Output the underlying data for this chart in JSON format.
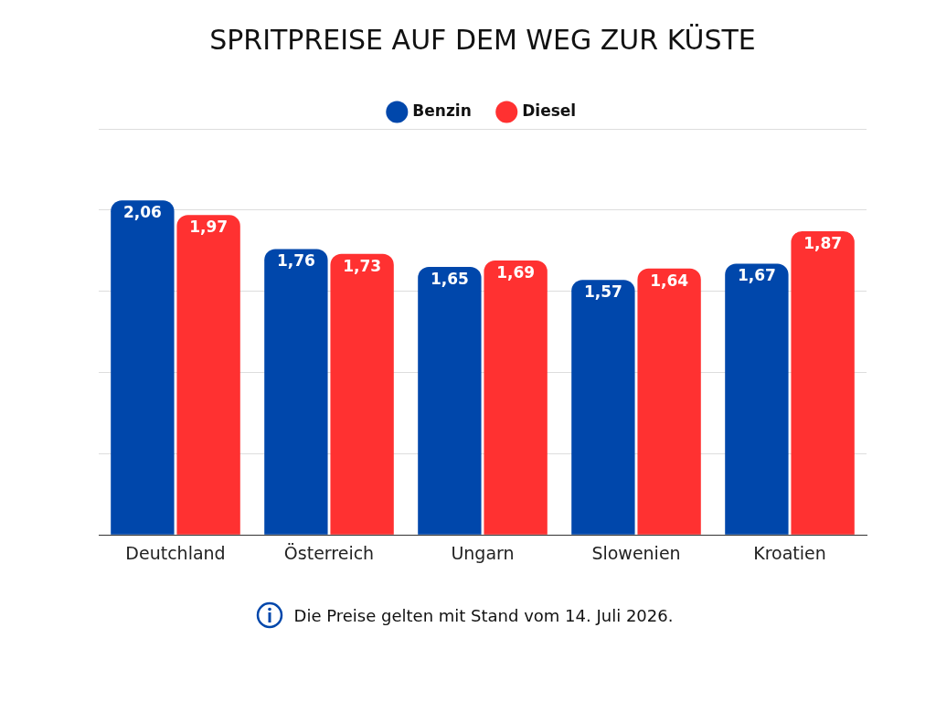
{
  "chart_data": {
    "type": "bar",
    "title": "SPRITPREISE AUF DEM WEG ZUR KÜSTE",
    "categories": [
      "Deutchland",
      "Österreich",
      "Ungarn",
      "Slowenien",
      "Kroatien"
    ],
    "series": [
      {
        "name": "Benzin",
        "color": "#0047ab",
        "values": [
          2.06,
          1.76,
          1.65,
          1.57,
          1.67
        ],
        "value_labels": [
          "2,06",
          "1,76",
          "1,65",
          "1,57",
          "1,67"
        ]
      },
      {
        "name": "Diesel",
        "color": "#ff3131",
        "values": [
          1.97,
          1.73,
          1.69,
          1.64,
          1.87
        ],
        "value_labels": [
          "1,97",
          "1,73",
          "1,69",
          "1,64",
          "1,87"
        ]
      }
    ],
    "tick_labels": "x",
    "grid": "y",
    "legend": "top",
    "annotations": [
      "Die Preise gelten mit Stand vom 14. Juli 2026."
    ]
  }
}
